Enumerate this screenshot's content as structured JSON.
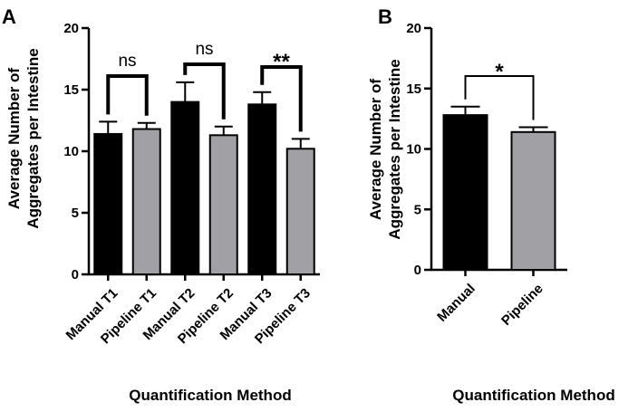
{
  "chart_data": [
    {
      "panel": "A",
      "type": "bar",
      "categories": [
        "Manual T1",
        "Pipeline T1",
        "Manual T2",
        "Pipeline T2",
        "Manual T3",
        "Pipeline T3"
      ],
      "values": [
        11.4,
        11.8,
        14.0,
        11.3,
        13.8,
        10.2
      ],
      "errors": [
        1.0,
        0.5,
        1.6,
        0.7,
        1.0,
        0.8
      ],
      "colors": [
        "#000000",
        "#a1a0a5",
        "#000000",
        "#a1a0a5",
        "#000000",
        "#a1a0a5"
      ],
      "ylabel_lines": [
        "Average Number of",
        "Aggregates per Intestine"
      ],
      "xlabel": "Quantification Method",
      "ylim": [
        0,
        20
      ],
      "yticks": [
        0,
        5,
        10,
        15,
        20
      ],
      "comparisons": [
        {
          "pair": [
            0,
            1
          ],
          "label": "ns"
        },
        {
          "pair": [
            2,
            3
          ],
          "label": "ns"
        },
        {
          "pair": [
            4,
            5
          ],
          "label": "**"
        }
      ]
    },
    {
      "panel": "B",
      "type": "bar",
      "categories": [
        "Manual",
        "Pipeline"
      ],
      "values": [
        12.8,
        11.4
      ],
      "errors": [
        0.7,
        0.4
      ],
      "colors": [
        "#000000",
        "#a1a0a5"
      ],
      "ylabel_lines": [
        "Average Number of",
        "Aggregates per Intestine"
      ],
      "xlabel": "Quantification Method",
      "ylim": [
        0,
        20
      ],
      "yticks": [
        0,
        5,
        10,
        15,
        20
      ],
      "comparisons": [
        {
          "pair": [
            0,
            1
          ],
          "label": "*"
        }
      ]
    }
  ]
}
